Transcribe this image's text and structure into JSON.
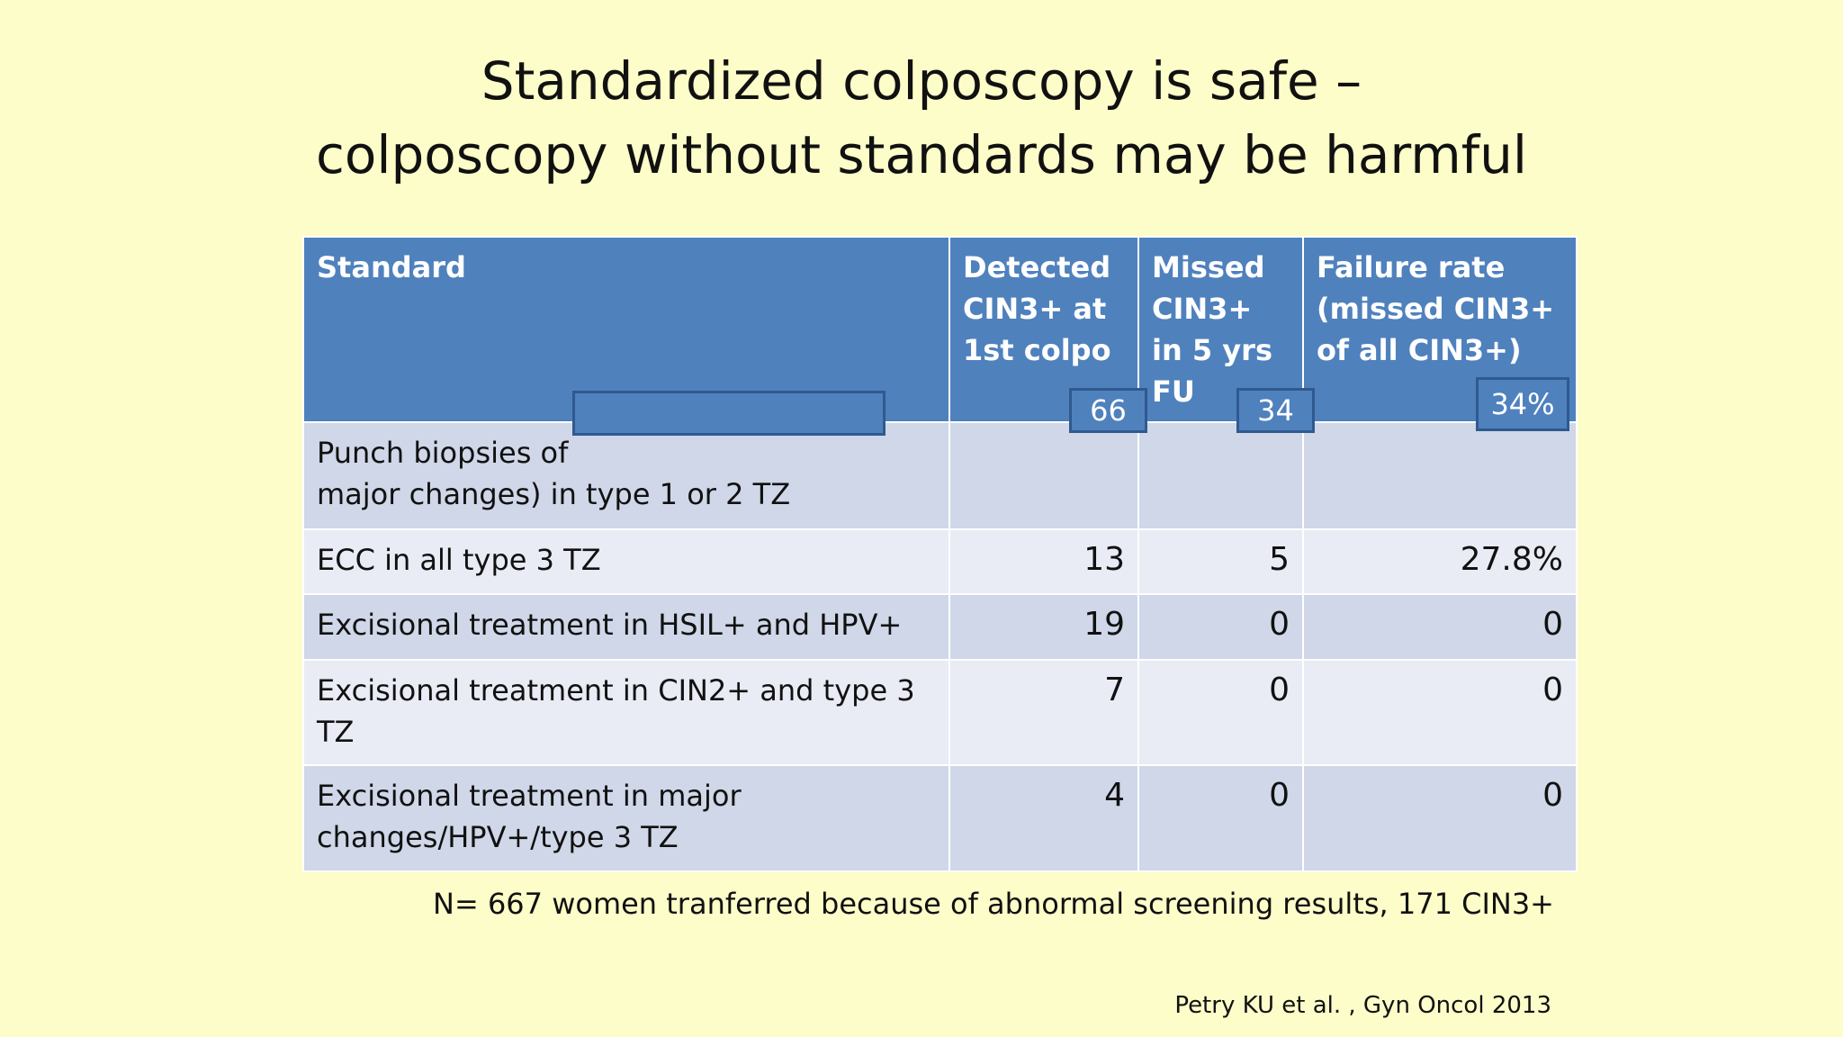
{
  "title": [
    "Standardized colposcopy is safe –",
    "colposcopy without standards may be harmful"
  ],
  "table": {
    "header": [
      "Standard",
      "Detected CIN3+ at 1st colpo",
      "Missed CIN3+ in 5 yrs FU",
      "Failure rate (missed CIN3+ of all CIN3+)"
    ],
    "rows": [
      [
        [
          "Punch biopsies of",
          "major changes) in type 1 or 2 TZ"
        ],
        "66",
        "34",
        "34%"
      ],
      [
        "ECC in all type 3 TZ",
        "13",
        "5",
        "27.8%"
      ],
      [
        "Excisional treatment in HSIL+ and HPV+",
        "19",
        "0",
        "0"
      ],
      [
        "Excisional treatment in CIN2+ and type 3 TZ",
        "7",
        "0",
        "0"
      ],
      [
        "Excisional treatment in major changes/HPV+/type 3 TZ",
        "4",
        "0",
        "0"
      ]
    ]
  },
  "footnote": "N= 667 women tranferred because of abnormal screening results, 171 CIN3+",
  "citation": "Petry KU et al. , Gyn Oncol 2013"
}
